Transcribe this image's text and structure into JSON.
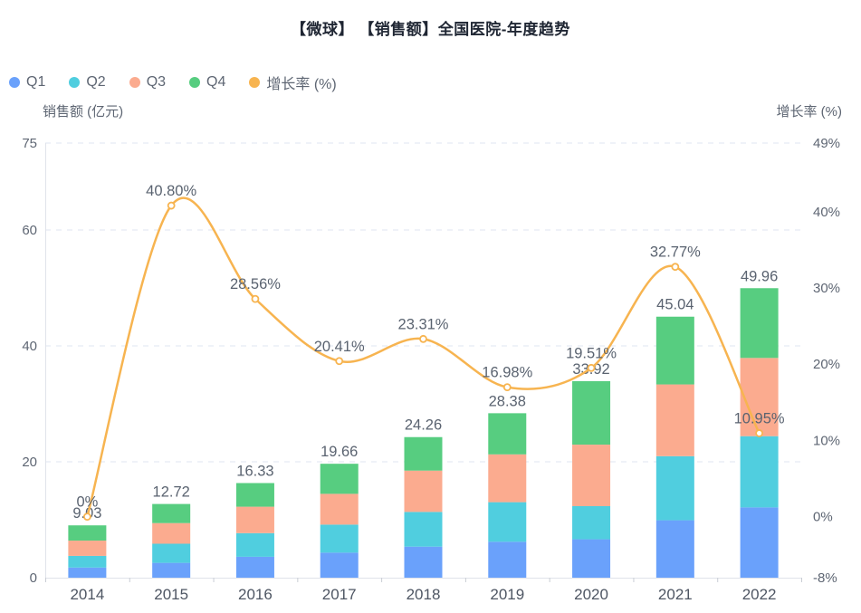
{
  "title": "【微球】 【销售额】全国医院-年度趋势",
  "legend": {
    "items": [
      {
        "label": "Q1",
        "color": "#6aa1fb"
      },
      {
        "label": "Q2",
        "color": "#50cedf"
      },
      {
        "label": "Q3",
        "color": "#fbab8f"
      },
      {
        "label": "Q4",
        "color": "#57cd80"
      },
      {
        "label": "增长率 (%)",
        "color": "#f7b450"
      }
    ]
  },
  "chart_data": {
    "type": "bar",
    "subtype": "stacked-bar-with-line",
    "title": "【微球】 【销售额】全国医院-年度趋势",
    "categories": [
      "2014",
      "2015",
      "2016",
      "2017",
      "2018",
      "2019",
      "2020",
      "2021",
      "2022"
    ],
    "series": [
      {
        "name": "Q1",
        "type": "bar",
        "stack": "sales",
        "color": "#6aa1fb",
        "values": [
          1.75,
          2.56,
          3.61,
          4.32,
          5.36,
          6.2,
          6.63,
          9.91,
          12.13
        ]
      },
      {
        "name": "Q2",
        "type": "bar",
        "stack": "sales",
        "color": "#50cedf",
        "values": [
          2.01,
          3.3,
          4.08,
          4.84,
          5.99,
          6.83,
          5.72,
          11.06,
          12.29
        ]
      },
      {
        "name": "Q3",
        "type": "bar",
        "stack": "sales",
        "color": "#fbab8f",
        "values": [
          2.64,
          3.56,
          4.56,
          5.31,
          7.13,
          8.25,
          10.61,
          12.38,
          13.5
        ]
      },
      {
        "name": "Q4",
        "type": "bar",
        "stack": "sales",
        "color": "#57cd80",
        "values": [
          2.63,
          3.3,
          4.08,
          5.19,
          5.78,
          7.1,
          10.96,
          11.69,
          12.04
        ]
      },
      {
        "name": "增长率 (%)",
        "type": "line",
        "axis": "right",
        "color": "#f7b450",
        "values": [
          0,
          40.8,
          28.56,
          20.41,
          23.31,
          16.98,
          19.51,
          32.77,
          10.95
        ]
      }
    ],
    "stack_totals": [
      9.03,
      12.72,
      16.33,
      19.66,
      24.26,
      28.38,
      33.92,
      45.04,
      49.96
    ],
    "total_labels": [
      "9.03",
      "12.72",
      "16.33",
      "19.66",
      "24.26",
      "28.38",
      "33.92",
      "45.04",
      "49.96"
    ],
    "growth_labels": [
      "0%",
      "40.80%",
      "28.56%",
      "20.41%",
      "23.31%",
      "16.98%",
      "19.51%",
      "32.77%",
      "10.95%"
    ],
    "left_axis": {
      "name": "销售额 (亿元)",
      "min": 0,
      "max": 75,
      "ticks": [
        0,
        20,
        40,
        60,
        75
      ]
    },
    "right_axis": {
      "name": "增长率 (%)",
      "min": -8,
      "max": 49,
      "ticks": [
        -8,
        0,
        10,
        20,
        30,
        40,
        49
      ],
      "suffix": "%"
    },
    "grid": {
      "style": "dashed",
      "color": "#dfe4f0"
    },
    "legend_position": "top-left",
    "colors": {
      "axis_line": "#e0e3ea",
      "tick_label": "#5e6673",
      "x_label": "#4e5663",
      "value_label": "#5a6370"
    }
  }
}
